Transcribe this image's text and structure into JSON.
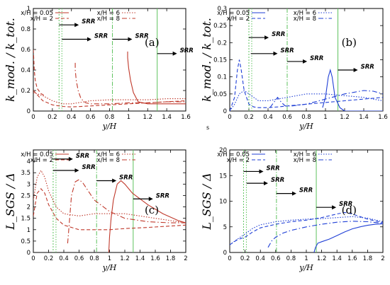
{
  "chart_data": [
    {
      "id": "a",
      "type": "line",
      "panel_label": "(a)",
      "xlabel": "y/H",
      "ylabel": "k_mod. / k_tot.",
      "xlim": [
        0,
        1.6
      ],
      "ylim": [
        0,
        1
      ],
      "xticks": [
        "0",
        "0.2",
        "0.4",
        "0.6",
        "0.8",
        "1",
        "1.2",
        "1.4",
        "1.6"
      ],
      "yticks": [
        "0",
        "0.2",
        "0.4",
        "0.6",
        "0.8",
        "1"
      ],
      "grid": false,
      "legend_position": "top",
      "series_color": "#c0392b",
      "series": [
        {
          "name": "x/H = 0.05",
          "style": "solid",
          "x": [
            0.99,
            0.99,
            1.0,
            1.02,
            1.05,
            1.1,
            1.2,
            1.3,
            1.4,
            1.5,
            1.6
          ],
          "y": [
            0.58,
            0.52,
            0.42,
            0.3,
            0.18,
            0.09,
            0.07,
            0.07,
            0.07,
            0.07,
            0.07
          ]
        },
        {
          "name": "x/H = 2",
          "style": "dashed",
          "x": [
            0.0,
            0.05,
            0.1,
            0.2,
            0.3,
            0.4,
            0.6,
            0.8,
            1.0,
            1.2,
            1.4,
            1.6
          ],
          "y": [
            0.2,
            0.15,
            0.1,
            0.06,
            0.045,
            0.04,
            0.05,
            0.06,
            0.07,
            0.08,
            0.09,
            0.1
          ]
        },
        {
          "name": "x/H = 6",
          "style": "dotted",
          "x": [
            0.0,
            0.1,
            0.2,
            0.3,
            0.4,
            0.6,
            0.8,
            1.0,
            1.2,
            1.4,
            1.6
          ],
          "y": [
            0.18,
            0.15,
            0.1,
            0.07,
            0.07,
            0.1,
            0.11,
            0.11,
            0.11,
            0.12,
            0.12
          ]
        },
        {
          "name": "x/H = 8",
          "style": "dashdot",
          "x": [
            0.44,
            0.44,
            0.45,
            0.47,
            0.5,
            0.55,
            0.6,
            0.8,
            1.0,
            1.2,
            1.4,
            1.6
          ],
          "y": [
            0.47,
            0.4,
            0.3,
            0.2,
            0.12,
            0.08,
            0.07,
            0.07,
            0.08,
            0.08,
            0.09,
            0.09
          ]
        }
      ],
      "extra_curve": {
        "style": "dashed",
        "x": [
          0.0,
          0.005,
          0.01,
          0.02,
          0.04,
          0.08,
          0.12
        ],
        "y": [
          0.6,
          0.5,
          0.4,
          0.3,
          0.22,
          0.17,
          0.15
        ]
      },
      "srr": [
        {
          "x": 0.27,
          "label": "SRR",
          "arrow_level": 0.84,
          "label_offset": "right"
        },
        {
          "x": 0.83,
          "label": "SRR",
          "arrow_level": 0.7,
          "label_offset": "right"
        },
        {
          "x": 1.3,
          "label": "SRR",
          "arrow_level": 0.56,
          "label_offset": "right"
        }
      ],
      "srr_extra_arrow": {
        "from": 0.3,
        "to": 0.61,
        "level": 0.7,
        "label": "SRR"
      }
    },
    {
      "id": "b",
      "type": "line",
      "panel_label": "(b)",
      "xlabel": "y/H",
      "ylabel": "k_mod. / k_tot.",
      "xlim": [
        0,
        1.6
      ],
      "ylim": [
        0,
        0.3
      ],
      "xticks": [
        "0",
        "0.2",
        "0.4",
        "0.6",
        "0.8",
        "1",
        "1.2",
        "1.4",
        "1.6"
      ],
      "yticks": [
        "0",
        "0.05",
        "0.1",
        "0.15",
        "0.2",
        "0.25",
        "0.3"
      ],
      "grid": false,
      "legend_position": "top",
      "series_color": "#1f3fd6",
      "series": [
        {
          "name": "x/H = 0.05",
          "style": "solid",
          "x": [
            0.97,
            1.0,
            1.03,
            1.05,
            1.07,
            1.1,
            1.15,
            1.2,
            1.3,
            1.4,
            1.5,
            1.6
          ],
          "y": [
            0.01,
            0.04,
            0.1,
            0.12,
            0.1,
            0.04,
            0.01,
            0.0,
            0.0,
            0.0,
            0.0,
            0.0
          ]
        },
        {
          "name": "x/H = 2",
          "style": "dashed",
          "x": [
            0.0,
            0.05,
            0.08,
            0.1,
            0.12,
            0.15,
            0.2,
            0.25,
            0.3,
            0.4,
            0.5,
            0.6,
            0.8,
            1.0,
            1.2,
            1.4,
            1.6
          ],
          "y": [
            0.0,
            0.04,
            0.12,
            0.15,
            0.12,
            0.06,
            0.02,
            0.012,
            0.01,
            0.01,
            0.012,
            0.015,
            0.02,
            0.025,
            0.03,
            0.035,
            0.04
          ]
        },
        {
          "name": "x/H = 6",
          "style": "dotted",
          "x": [
            0.0,
            0.05,
            0.1,
            0.15,
            0.2,
            0.3,
            0.4,
            0.6,
            0.8,
            1.0,
            1.2,
            1.4,
            1.6
          ],
          "y": [
            0.0,
            0.02,
            0.05,
            0.06,
            0.05,
            0.03,
            0.03,
            0.04,
            0.05,
            0.05,
            0.045,
            0.04,
            0.03
          ]
        },
        {
          "name": "x/H = 8",
          "style": "dashdot",
          "x": [
            0.42,
            0.46,
            0.5,
            0.54,
            0.58,
            0.65,
            0.8,
            1.0,
            1.2,
            1.3,
            1.4,
            1.5,
            1.6
          ],
          "y": [
            0.01,
            0.025,
            0.04,
            0.025,
            0.015,
            0.015,
            0.02,
            0.035,
            0.05,
            0.055,
            0.06,
            0.058,
            0.05
          ]
        }
      ],
      "srr": [
        {
          "x": 0.2,
          "label": "SRR",
          "arrow_level": 0.215
        },
        {
          "x": 0.6,
          "label": "SRR",
          "arrow_level": 0.145
        },
        {
          "x": 1.13,
          "label": "SRR",
          "arrow_level": 0.12
        }
      ],
      "srr_extra_arrow": {
        "from": 0.22,
        "to": 0.5,
        "level": 0.168,
        "label": "SRR"
      }
    },
    {
      "id": "c",
      "type": "line",
      "panel_label": "(c)",
      "xlabel": "y/H",
      "ylabel": "L_SGS / Δ",
      "xlim": [
        0,
        2
      ],
      "ylim": [
        0,
        4.5
      ],
      "xticks": [
        "0",
        "0.2",
        "0.4",
        "0.6",
        "0.8",
        "1",
        "1.2",
        "1.4",
        "1.6",
        "1.8",
        "2"
      ],
      "yticks": [
        "0",
        "0.5",
        "1",
        "1.5",
        "2",
        "2.5",
        "3",
        "3.5",
        "4"
      ],
      "grid": false,
      "legend_position": "top",
      "series_color": "#c0392b",
      "series": [
        {
          "name": "x/H = 0.05",
          "style": "solid",
          "x": [
            0.99,
            1.0,
            1.02,
            1.05,
            1.1,
            1.15,
            1.2,
            1.3,
            1.5,
            1.7,
            1.9,
            2.0
          ],
          "y": [
            0.0,
            0.7,
            1.5,
            2.3,
            3.0,
            3.15,
            3.0,
            2.6,
            2.1,
            1.7,
            1.4,
            1.3
          ]
        },
        {
          "name": "x/H = 2",
          "style": "dashed",
          "x": [
            0.0,
            0.05,
            0.1,
            0.15,
            0.2,
            0.3,
            0.4,
            0.6,
            0.8,
            1.0,
            1.2,
            1.5,
            2.0
          ],
          "y": [
            1.6,
            2.6,
            2.8,
            2.6,
            2.1,
            1.5,
            1.2,
            1.0,
            1.0,
            1.0,
            1.05,
            1.1,
            1.2
          ]
        },
        {
          "name": "x/H = 6",
          "style": "dotted",
          "x": [
            0.0,
            0.05,
            0.1,
            0.15,
            0.2,
            0.3,
            0.4,
            0.6,
            0.8,
            1.0,
            1.2,
            1.4,
            1.6,
            1.8,
            2.0
          ],
          "y": [
            2.3,
            3.3,
            3.6,
            3.3,
            2.7,
            2.0,
            1.7,
            1.6,
            1.7,
            1.7,
            1.7,
            1.6,
            1.5,
            1.4,
            1.3
          ]
        },
        {
          "name": "x/H = 8",
          "style": "dashdot",
          "x": [
            0.45,
            0.47,
            0.5,
            0.55,
            0.6,
            0.65,
            0.7,
            0.8,
            1.0,
            1.2,
            1.5,
            1.8,
            2.0
          ],
          "y": [
            0.4,
            1.2,
            2.5,
            3.1,
            3.2,
            3.05,
            2.8,
            2.3,
            1.8,
            1.5,
            1.35,
            1.3,
            1.3
          ]
        }
      ],
      "srr": [
        {
          "x": 0.26,
          "label": "SRR",
          "arrow_level": 4.1
        },
        {
          "x": 0.83,
          "label": "SRR",
          "arrow_level": 3.15
        },
        {
          "x": 1.31,
          "label": "SRR",
          "arrow_level": 2.35
        }
      ],
      "srr_extra_arrow": {
        "from": 0.26,
        "to": 0.6,
        "level": 3.6,
        "label": "SRR"
      }
    },
    {
      "id": "d",
      "type": "line",
      "panel_label": "(d)",
      "xlabel": "y/H",
      "ylabel": "L_SGS / Δ",
      "xlim": [
        0,
        2
      ],
      "ylim": [
        0,
        20
      ],
      "xticks": [
        "0",
        "0.2",
        "0.4",
        "0.6",
        "0.8",
        "1",
        "1.2",
        "1.4",
        "1.6",
        "1.8",
        "2"
      ],
      "yticks": [
        "0",
        "5",
        "10",
        "15",
        "20"
      ],
      "grid": false,
      "legend_position": "top",
      "series_color": "#1f3fd6",
      "series": [
        {
          "name": "x/H = 0.05",
          "style": "solid",
          "x": [
            1.1,
            1.12,
            1.15,
            1.2,
            1.3,
            1.4,
            1.5,
            1.6,
            1.7,
            1.8,
            1.9,
            2.0
          ],
          "y": [
            0.0,
            1.0,
            1.8,
            2.1,
            2.6,
            3.3,
            4.0,
            4.6,
            5.0,
            5.3,
            5.5,
            5.6
          ]
        },
        {
          "name": "x/H = 2",
          "style": "dashed",
          "x": [
            0.0,
            0.1,
            0.2,
            0.3,
            0.4,
            0.6,
            0.8,
            1.0,
            1.2,
            1.4,
            1.5,
            1.6,
            1.8,
            2.0
          ],
          "y": [
            1.5,
            2.5,
            3.0,
            4.0,
            4.8,
            5.5,
            6.0,
            6.3,
            6.8,
            7.5,
            7.8,
            7.5,
            6.5,
            5.8
          ]
        },
        {
          "name": "x/H = 6",
          "style": "dotted",
          "x": [
            0.0,
            0.1,
            0.2,
            0.3,
            0.4,
            0.6,
            0.8,
            1.0,
            1.2,
            1.4,
            1.6,
            1.8,
            2.0
          ],
          "y": [
            1.5,
            2.6,
            3.6,
            4.7,
            5.4,
            6.0,
            6.3,
            6.5,
            6.6,
            6.8,
            7.0,
            6.7,
            6.0
          ]
        },
        {
          "name": "x/H = 8",
          "style": "dashdot",
          "x": [
            0.5,
            0.55,
            0.6,
            0.7,
            0.8,
            1.0,
            1.2,
            1.4,
            1.6,
            1.8,
            2.0
          ],
          "y": [
            1.0,
            2.3,
            3.0,
            3.8,
            4.3,
            5.0,
            5.5,
            5.9,
            6.1,
            6.0,
            5.7
          ]
        }
      ],
      "srr": [
        {
          "x": 0.18,
          "label": "SRR",
          "arrow_level": 15.8
        },
        {
          "x": 0.61,
          "label": "SRR",
          "arrow_level": 11.5
        },
        {
          "x": 1.13,
          "label": "SRR",
          "arrow_level": 8.8
        }
      ],
      "srr_extra_arrow": {
        "from": 0.22,
        "to": 0.5,
        "level": 13.5,
        "label": "SRR"
      }
    }
  ],
  "stray_text": "s"
}
